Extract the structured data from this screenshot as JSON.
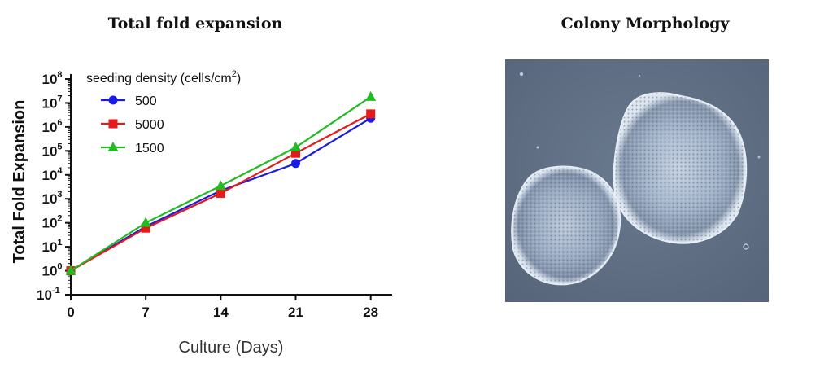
{
  "chart_data": [
    {
      "type": "line",
      "title": "Total fold expansion",
      "xlabel": "Culture (Days)",
      "ylabel": "Total Fold Expansion",
      "yscale": "log10",
      "ylim": [
        0.1,
        100000000
      ],
      "xlim": [
        0,
        30
      ],
      "xticks": [
        "0",
        "7",
        "14",
        "21",
        "28"
      ],
      "yticks": [
        {
          "base": "10",
          "exp": "8"
        },
        {
          "base": "10",
          "exp": "7"
        },
        {
          "base": "10",
          "exp": "6"
        },
        {
          "base": "10",
          "exp": "5"
        },
        {
          "base": "10",
          "exp": "4"
        },
        {
          "base": "10",
          "exp": "3"
        },
        {
          "base": "10",
          "exp": "2"
        },
        {
          "base": "10",
          "exp": "1"
        },
        {
          "base": "10",
          "exp": "0"
        },
        {
          "base": "10",
          "exp": "-1"
        }
      ],
      "legend": {
        "title": "seeding density (cells/cm",
        "title_sup": "2",
        "title_end": ")",
        "placement": "top-left"
      },
      "x": [
        0,
        7,
        14,
        21,
        28
      ],
      "series": [
        {
          "name": "500",
          "color": "#1a1ae6",
          "marker": "circle",
          "values": [
            1,
            70,
            2200,
            30000,
            2300000
          ]
        },
        {
          "name": "5000",
          "color": "#e61a1a",
          "marker": "square",
          "values": [
            1,
            60,
            1700,
            80000,
            3500000
          ]
        },
        {
          "name": "1500",
          "color": "#22bb22",
          "marker": "triangle",
          "values": [
            1,
            100,
            3500,
            140000,
            18000000
          ]
        }
      ]
    }
  ],
  "images": [
    {
      "title": "Colony Morphology",
      "subject": "phase-contrast micrograph of two cell colonies"
    }
  ]
}
